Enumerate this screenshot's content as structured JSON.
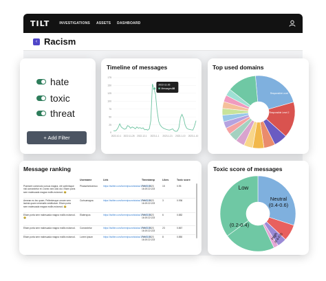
{
  "topbar": {
    "logo": "TILT",
    "nav": [
      "INVESTIGATIONS",
      "ASSETS",
      "DASHBOARD"
    ]
  },
  "titlebar": {
    "back_glyph": "‹",
    "title": "Racism"
  },
  "filters": {
    "items": [
      "hate",
      "toxic",
      "threat"
    ],
    "add_label": "+ Add Filter"
  },
  "timeline": {
    "title": "Timeline of messages",
    "tooltip_date": "2022-11-26",
    "tooltip_label": "Messages",
    "tooltip_value": "38",
    "y_ticks": [
      "175",
      "150",
      "125",
      "100",
      "75",
      "50",
      "25",
      "0"
    ],
    "x_ticks": [
      "2022-10-1",
      "2022-11-26",
      "2022-12-1",
      "2023-1-1",
      "2023-1-21",
      "2023-1-10",
      "2023-1-10"
    ]
  },
  "domains": {
    "title": "Top used domains"
  },
  "ranking": {
    "title": "Message ranking",
    "columns": [
      "",
      "Username",
      "Link",
      "Timestamp",
      "Likes",
      "Toxic score"
    ],
    "rows": [
      {
        "msg": "Praesent commodo cursus magna, vel scelerisque nisl consectetur et. Donec sed odio dui. Etiam porta sem malesuada magna mollis euismod. 😂",
        "user": "Phasselvidoemco",
        "link": "https://twitter.com/loremipsum/status/17230000",
        "time": "Feb 7, 2023 16:19:22:223",
        "likes": "15",
        "score": "0.95"
      },
      {
        "msg": "Aenean eu leo quam. Pellentesque ornare sem lacinia quam venenatis vestibulum. Etiam porta sem malesuada magna mollis euismod. 😂",
        "user": "Curisumagna",
        "link": "https://twitter.com/loremipsum/status/17230000",
        "time": "Feb 7, 2023 16:19:22:223",
        "likes": "3",
        "score": "0.936"
      },
      {
        "msg": "Etiam porta sem malesuada magna mollis euismod. 😂",
        "user": "Elaterspus",
        "link": "https://twitter.com/loremipsum/status/17230000",
        "time": "Feb 7, 2023 16:19:22:223",
        "likes": "6",
        "score": "0.882"
      },
      {
        "msg": "Etiam porta sem malesuada magna mollis euismod.",
        "user": "Consectetur",
        "link": "https://twitter.com/loremipsum/status/17230000",
        "time": "Feb 7, 2023 16:19:22:223",
        "likes": "23",
        "score": "0.867"
      },
      {
        "msg": "Etiam porta sem malesuada magna mollis euismod.",
        "user": "Lorem ipsum",
        "link": "https://twitter.com/loremipsum/status/17230000",
        "time": "Feb 7, 2023 16:19:22:223",
        "likes": "8",
        "score": "0.850"
      }
    ]
  },
  "toxic": {
    "title": "Toxic score of messages"
  },
  "chart_data": [
    {
      "type": "line",
      "title": "Timeline of messages",
      "ylim": [
        0,
        175
      ],
      "series": [
        {
          "values": [
            6,
            5,
            8,
            16,
            28,
            18,
            14,
            11,
            12,
            22,
            20,
            14,
            18,
            16,
            12,
            18,
            14,
            16,
            13,
            15,
            9,
            10,
            8,
            12,
            38,
            155,
            138,
            122,
            70,
            36,
            24,
            18,
            14,
            12,
            10,
            9,
            8,
            10,
            12,
            6,
            4,
            5,
            15,
            48,
            58,
            46,
            24,
            14,
            11,
            10,
            9,
            8,
            20,
            38
          ]
        }
      ],
      "annotation": {
        "label": "2022-11-26",
        "series": "Messages",
        "value": 38
      },
      "color": "#6cc3a0"
    },
    {
      "type": "pie",
      "title": "Top used domains",
      "donut": true,
      "labels": [
        "Responsible Level",
        "Responsible Level 2"
      ],
      "slices": [
        {
          "value": 22,
          "color": "#7fb0de"
        },
        {
          "value": 16,
          "color": "#d9534f"
        },
        {
          "value": 6,
          "color": "#6a5bc2"
        },
        {
          "value": 5,
          "color": "#ea8b6c"
        },
        {
          "value": 5,
          "color": "#f2b84b"
        },
        {
          "value": 4,
          "color": "#f8d68a"
        },
        {
          "value": 4,
          "color": "#d9a3ce"
        },
        {
          "value": 4,
          "color": "#a4d1c0"
        },
        {
          "value": 3,
          "color": "#f5a3a3"
        },
        {
          "value": 3,
          "color": "#b5a2e0"
        },
        {
          "value": 3,
          "color": "#97c7e8"
        },
        {
          "value": 3,
          "color": "#c8e39a"
        },
        {
          "value": 3,
          "color": "#f5c09a"
        },
        {
          "value": 3,
          "color": "#f09bbf"
        },
        {
          "value": 3,
          "color": "#9ee0d4"
        },
        {
          "value": 13,
          "color": "#6fc8a4"
        }
      ]
    },
    {
      "type": "pie",
      "title": "Toxic score of messages",
      "donut": true,
      "slices": [
        {
          "label": "Neutral (0.4-0.6)",
          "value": 30,
          "color": "#7fb0de"
        },
        {
          "label": "High (0.6-0.8)",
          "value": 7,
          "color": "#e8605e"
        },
        {
          "label": "",
          "value": 4,
          "color": "#9a8ad6"
        },
        {
          "label": "",
          "value": 2,
          "color": "#e3a6d6"
        },
        {
          "label": "(0.2-0.4)",
          "value": 22,
          "color": "#6fc8a4"
        },
        {
          "label": "Low",
          "value": 35,
          "color": "#6fc8a4"
        }
      ]
    }
  ]
}
